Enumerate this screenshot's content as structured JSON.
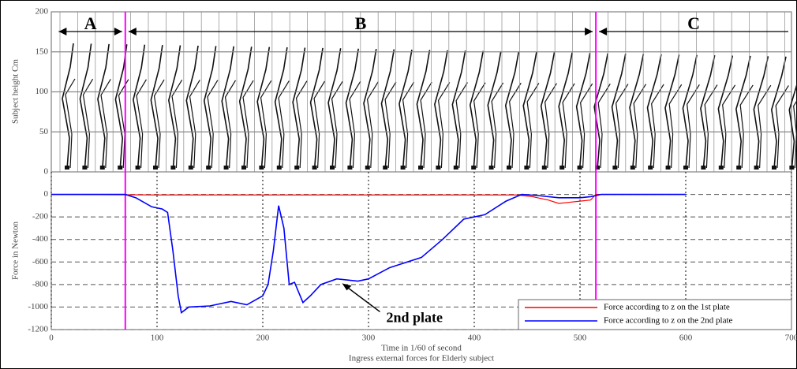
{
  "chart_data": [
    {
      "type": "figure",
      "y_label": "Subject height Cm",
      "ylim": [
        0,
        200
      ],
      "yticks": [
        0,
        50,
        100,
        150,
        200
      ],
      "phases": [
        {
          "label": "A",
          "start": 4,
          "end": 70
        },
        {
          "label": "B",
          "start": 70,
          "end": 515
        },
        {
          "label": "C",
          "start": 515,
          "end": 700
        }
      ]
    },
    {
      "type": "line",
      "y_label": "Force in Newton",
      "x_label": "Time in 1/60 of second",
      "caption": "Ingress external forces for Elderly subject",
      "xlim": [
        0,
        700
      ],
      "xticks": [
        0,
        100,
        200,
        300,
        400,
        500,
        600,
        700
      ],
      "ylim": [
        -1200,
        200
      ],
      "yticks": [
        0,
        -200,
        -400,
        -600,
        -800,
        -1000,
        -1200
      ],
      "grid": true,
      "legend": "lower right",
      "annotations": [
        {
          "text": "2nd plate",
          "x": 275,
          "y": -790
        }
      ],
      "series": [
        {
          "name": "Force according to z on the 1st plate",
          "color": "#ff0000",
          "x": [
            0,
            100,
            200,
            300,
            400,
            440,
            455,
            470,
            480,
            490,
            500,
            510,
            515,
            550,
            600
          ],
          "values": [
            0,
            -5,
            -5,
            -5,
            -5,
            -5,
            -20,
            -50,
            -80,
            -70,
            -60,
            -50,
            0,
            0,
            0
          ]
        },
        {
          "name": "Force according to z on the 2nd plate",
          "color": "#0000ff",
          "x": [
            0,
            70,
            80,
            95,
            105,
            110,
            115,
            120,
            123,
            130,
            150,
            170,
            185,
            200,
            205,
            210,
            215,
            220,
            225,
            230,
            238,
            245,
            255,
            270,
            290,
            300,
            320,
            350,
            370,
            390,
            410,
            430,
            445,
            460,
            480,
            500,
            510,
            520,
            600
          ],
          "values": [
            0,
            0,
            -30,
            -110,
            -130,
            -160,
            -500,
            -900,
            -1050,
            -1000,
            -990,
            -950,
            -980,
            -900,
            -800,
            -500,
            -100,
            -300,
            -800,
            -780,
            -960,
            -900,
            -800,
            -750,
            -770,
            -750,
            -650,
            -560,
            -400,
            -220,
            -180,
            -60,
            0,
            -10,
            -30,
            -30,
            -20,
            0,
            0
          ]
        }
      ]
    }
  ]
}
